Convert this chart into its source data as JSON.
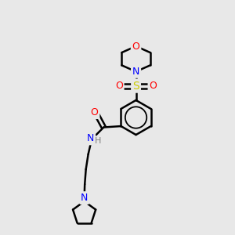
{
  "background_color": "#e8e8e8",
  "atom_colors": {
    "O": "#ff0000",
    "N": "#0000ff",
    "S": "#cccc00",
    "C": "#000000",
    "H": "#808080"
  },
  "bond_color": "#000000",
  "bond_width": 1.8,
  "figsize": [
    3.0,
    3.0
  ],
  "dpi": 100,
  "xlim": [
    0,
    10
  ],
  "ylim": [
    0,
    10
  ]
}
